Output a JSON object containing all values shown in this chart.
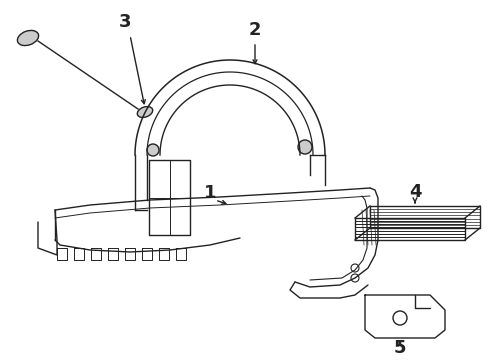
{
  "background_color": "#ffffff",
  "line_color": "#222222",
  "fig_width": 4.9,
  "fig_height": 3.6,
  "dpi": 100,
  "label_fontsize": 13,
  "label_fontweight": "bold",
  "lw": 1.0
}
